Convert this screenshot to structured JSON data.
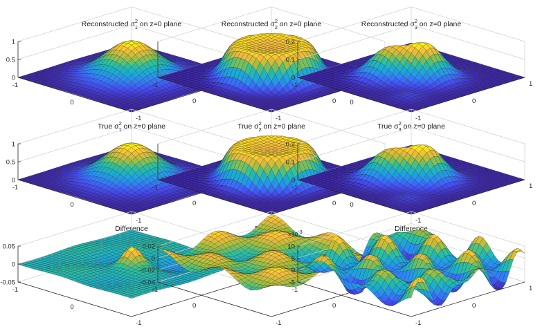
{
  "figure": {
    "background": "#ffffff",
    "rows": 3,
    "cols": 3
  },
  "colormap": [
    "#3e26a8",
    "#4650f6",
    "#2e87f4",
    "#1bacd2",
    "#2ec09a",
    "#a5be3c",
    "#f7ba3d",
    "#f9fb0e"
  ],
  "chart_data": [
    {
      "type": "surface",
      "title_prefix": "Reconstructed ",
      "symbol": "σ",
      "sub": "1",
      "sup": "2",
      "title_suffix": " on z=0 plane",
      "surface": "gauss",
      "zlim": [
        0,
        1
      ],
      "zticks": [
        "1",
        "0.5",
        "0"
      ],
      "xticks": [
        "-1",
        "0"
      ],
      "yticks": [
        "-1",
        "0",
        "1"
      ]
    },
    {
      "type": "surface",
      "title_prefix": "Reconstructed ",
      "symbol": "σ",
      "sub": "2",
      "sup": "2",
      "title_suffix": " on z=0 plane",
      "surface": "plateau",
      "zlim": [
        0,
        1
      ],
      "zticks": [],
      "xticks": [
        "-1"
      ],
      "yticks": [
        "-1",
        "0",
        "1"
      ]
    },
    {
      "type": "surface",
      "title_prefix": "Reconstructed ",
      "symbol": "σ",
      "sub": "3",
      "sup": "2",
      "title_suffix": " on z=0 plane",
      "surface": "double",
      "zlim": [
        0,
        0.2
      ],
      "zticks": [
        "0.2",
        "0.1",
        "0"
      ],
      "xticks": [
        "-1",
        "0"
      ],
      "yticks": [
        "-1",
        "0",
        "1"
      ]
    },
    {
      "type": "surface",
      "title_prefix": "True ",
      "symbol": "σ",
      "sub": "1",
      "sup": "2",
      "title_suffix": " on z=0 plane",
      "surface": "gauss",
      "zlim": [
        0,
        1
      ],
      "zticks": [
        "1",
        "0.5",
        "0"
      ],
      "xticks": [
        "-1",
        "0"
      ],
      "yticks": [
        "-1",
        "0",
        "1"
      ]
    },
    {
      "type": "surface",
      "title_prefix": "True ",
      "symbol": "σ",
      "sub": "2",
      "sup": "2",
      "title_suffix": " on z=0 plane",
      "surface": "plateau",
      "zlim": [
        0,
        1
      ],
      "zticks": [],
      "xticks": [
        "-1"
      ],
      "yticks": [
        "-1",
        "0",
        "1"
      ]
    },
    {
      "type": "surface",
      "title_prefix": "True ",
      "symbol": "σ",
      "sub": "3",
      "sup": "2",
      "title_suffix": " on z=0 plane",
      "surface": "double",
      "zlim": [
        0,
        0.2
      ],
      "zticks": [
        "0.2",
        "0.1",
        "0"
      ],
      "xticks": [
        "-1",
        "0"
      ],
      "yticks": [
        "-1",
        "0",
        "1"
      ]
    },
    {
      "type": "surface",
      "title_prefix": "Difference",
      "symbol": "",
      "sub": "",
      "sup": "",
      "title_suffix": "",
      "surface": "diff1",
      "zlim": [
        -0.05,
        0.05
      ],
      "zticks": [
        "0.05",
        "0",
        "-0.05"
      ],
      "xticks": [
        "-1",
        "0"
      ],
      "yticks": [
        "-1",
        "0",
        "1"
      ]
    },
    {
      "type": "surface",
      "title_prefix": "Difference",
      "symbol": "",
      "sub": "",
      "sup": "",
      "title_suffix": "",
      "surface": "diff2",
      "zlim": [
        -0.05,
        0.025
      ],
      "zticks": [
        "0.02",
        "0",
        "-0.02",
        "-0.04"
      ],
      "xticks": [
        "-1"
      ],
      "yticks": [
        "-1",
        "0",
        "1"
      ]
    },
    {
      "type": "surface",
      "title_prefix": "Difference",
      "symbol": "",
      "sub": "",
      "sup": "",
      "title_suffix": "",
      "surface": "diff3",
      "zlim": [
        -0.006,
        0.012
      ],
      "zticks": [
        "10",
        "5",
        "0",
        "-5"
      ],
      "xticks": [
        "-1"
      ],
      "yticks": [
        "-1",
        "0",
        "1"
      ],
      "exponent_base": "×10",
      "exponent_power": "-3"
    }
  ]
}
